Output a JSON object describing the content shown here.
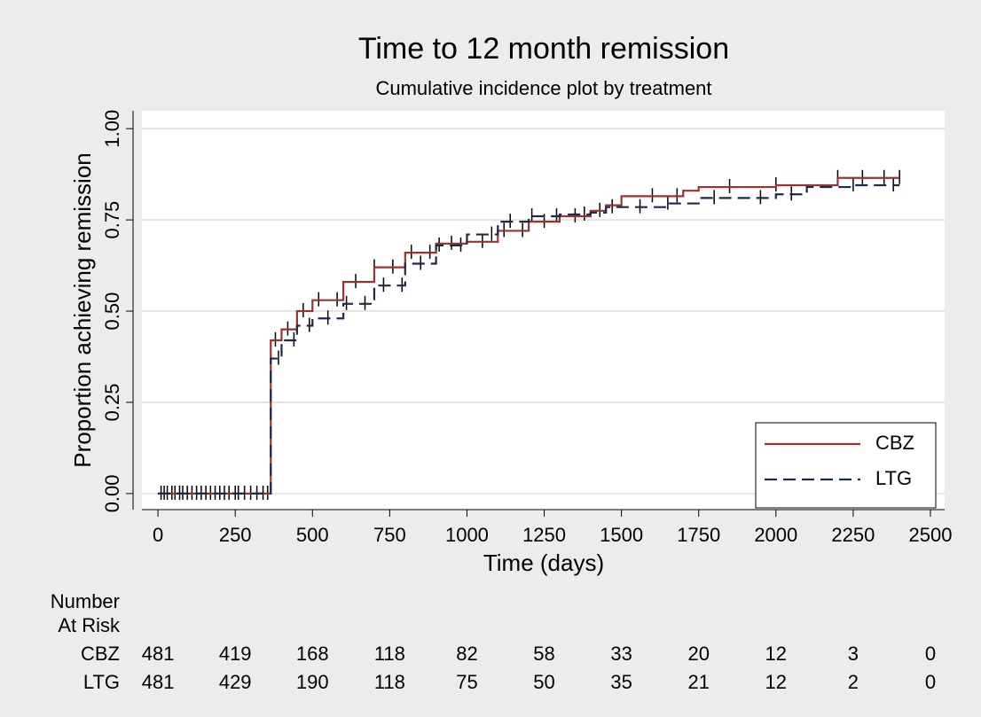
{
  "chart_data": {
    "type": "step",
    "title": "Time to 12 month remission",
    "subtitle": "Cumulative incidence plot by treatment",
    "xlabel": "Time (days)",
    "ylabel": "Proportion achieving remission",
    "xlim": [
      -52,
      2546
    ],
    "ylim": [
      -0.044,
      1.049
    ],
    "xticks": [
      0,
      250,
      500,
      750,
      1000,
      1250,
      1500,
      1750,
      2000,
      2250,
      2500
    ],
    "yticks": [
      {
        "value": 0,
        "label": "0.00"
      },
      {
        "value": 0.25,
        "label": "0.25"
      },
      {
        "value": 0.5,
        "label": "0.50"
      },
      {
        "value": 0.75,
        "label": "0.75"
      },
      {
        "value": 1,
        "label": "1.00"
      }
    ],
    "grid": true,
    "legend": "lower right",
    "series": [
      {
        "name": "CBZ",
        "color": "#9b3232",
        "dash": false,
        "x": [
          0,
          365,
          400,
          450,
          500,
          600,
          700,
          800,
          900,
          1000,
          1100,
          1200,
          1300,
          1400,
          1450,
          1500,
          1700,
          1750,
          2000,
          2200,
          2400
        ],
        "values": [
          0,
          0.42,
          0.45,
          0.5,
          0.53,
          0.58,
          0.62,
          0.66,
          0.685,
          0.69,
          0.72,
          0.745,
          0.76,
          0.775,
          0.79,
          0.815,
          0.83,
          0.84,
          0.845,
          0.865,
          0.865
        ],
        "censored": [
          10,
          30,
          55,
          80,
          110,
          140,
          170,
          200,
          230,
          260,
          300,
          340,
          380,
          420,
          470,
          520,
          580,
          640,
          700,
          760,
          820,
          880,
          950,
          1050,
          1120,
          1180,
          1250,
          1350,
          1430,
          1600,
          1680,
          1850,
          2000,
          2200,
          2280,
          2350,
          2400
        ]
      },
      {
        "name": "LTG",
        "color": "#1c2b4a",
        "dash": true,
        "x": [
          0,
          365,
          400,
          450,
          500,
          600,
          700,
          800,
          900,
          1000,
          1100,
          1200,
          1300,
          1400,
          1450,
          1650,
          1750,
          2000,
          2100,
          2250,
          2400
        ],
        "values": [
          0,
          0.37,
          0.42,
          0.46,
          0.48,
          0.52,
          0.57,
          0.63,
          0.68,
          0.71,
          0.745,
          0.76,
          0.765,
          0.77,
          0.785,
          0.795,
          0.81,
          0.82,
          0.84,
          0.845,
          0.845
        ],
        "censored": [
          20,
          45,
          70,
          95,
          125,
          155,
          185,
          215,
          250,
          280,
          320,
          355,
          390,
          440,
          490,
          550,
          610,
          670,
          730,
          790,
          850,
          910,
          980,
          1080,
          1140,
          1210,
          1290,
          1380,
          1470,
          1560,
          1650,
          1800,
          1950,
          2050,
          2250,
          2380
        ]
      }
    ],
    "at_risk": {
      "title": [
        "Number",
        "At Risk"
      ],
      "rows": [
        {
          "name": "CBZ",
          "values": [
            481,
            419,
            168,
            118,
            82,
            58,
            33,
            20,
            12,
            3,
            0
          ]
        },
        {
          "name": "LTG",
          "values": [
            481,
            429,
            190,
            118,
            75,
            50,
            35,
            21,
            12,
            2,
            0
          ]
        }
      ]
    }
  }
}
